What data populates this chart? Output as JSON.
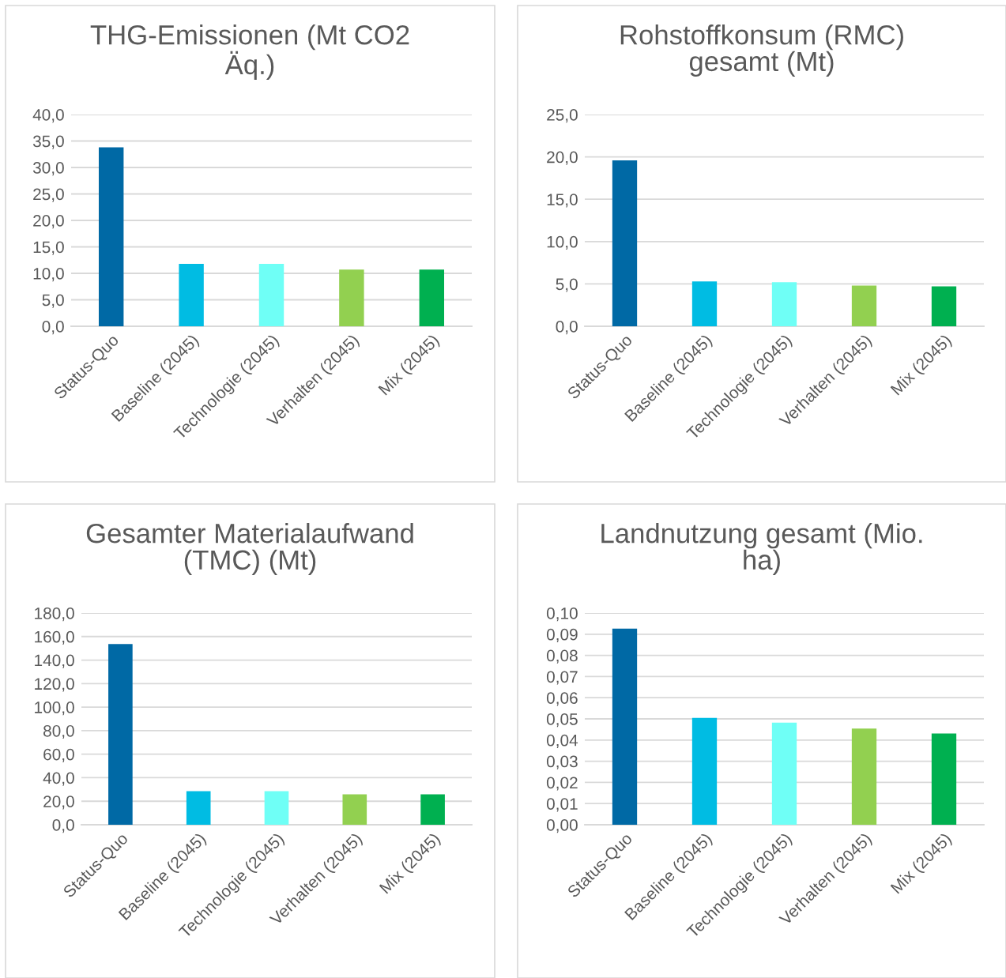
{
  "chart_data": [
    {
      "type": "bar",
      "title": "THG-Emissionen (Mt CO2\nÄq.)",
      "categories": [
        "Status-Quo",
        "Baseline (2045)",
        "Technologie (2045)",
        "Verhalten (2045)",
        "Mix (2045)"
      ],
      "values": [
        33.8,
        11.8,
        11.8,
        10.7,
        10.7
      ],
      "colors": [
        "#0069a5",
        "#00bce3",
        "#6ffff6",
        "#92d050",
        "#00b050"
      ],
      "ylim": [
        0,
        40
      ],
      "yticks": [
        {
          "value": 0,
          "label": "0,0"
        },
        {
          "value": 5,
          "label": "5,0"
        },
        {
          "value": 10,
          "label": "10,0"
        },
        {
          "value": 15,
          "label": "15,0"
        },
        {
          "value": 20,
          "label": "20,0"
        },
        {
          "value": 25,
          "label": "25,0"
        },
        {
          "value": 30,
          "label": "30,0"
        },
        {
          "value": 35,
          "label": "35,0"
        },
        {
          "value": 40,
          "label": "40,0"
        }
      ],
      "grid": "y"
    },
    {
      "type": "bar",
      "title": "Rohstoffkonsum (RMC)\ngesamt (Mt)",
      "categories": [
        "Status-Quo",
        "Baseline (2045)",
        "Technologie (2045)",
        "Verhalten (2045)",
        "Mix (2045)"
      ],
      "values": [
        19.6,
        5.3,
        5.2,
        4.8,
        4.7
      ],
      "colors": [
        "#0069a5",
        "#00bce3",
        "#6ffff6",
        "#92d050",
        "#00b050"
      ],
      "ylim": [
        0,
        25
      ],
      "yticks": [
        {
          "value": 0,
          "label": "0,0"
        },
        {
          "value": 5,
          "label": "5,0"
        },
        {
          "value": 10,
          "label": "10,0"
        },
        {
          "value": 15,
          "label": "15,0"
        },
        {
          "value": 20,
          "label": "20,0"
        },
        {
          "value": 25,
          "label": "25,0"
        }
      ],
      "grid": "y"
    },
    {
      "type": "bar",
      "title": "Gesamter Materialaufwand\n(TMC) (Mt)",
      "categories": [
        "Status-Quo",
        "Baseline (2045)",
        "Technologie (2045)",
        "Verhalten (2045)",
        "Mix (2045)"
      ],
      "values": [
        153.7,
        28.5,
        28.5,
        25.8,
        25.8
      ],
      "colors": [
        "#0069a5",
        "#00bce3",
        "#6ffff6",
        "#92d050",
        "#00b050"
      ],
      "ylim": [
        0,
        180
      ],
      "yticks": [
        {
          "value": 0,
          "label": "0,0"
        },
        {
          "value": 20,
          "label": "20,0"
        },
        {
          "value": 40,
          "label": "40,0"
        },
        {
          "value": 60,
          "label": "60,0"
        },
        {
          "value": 80,
          "label": "80,0"
        },
        {
          "value": 100,
          "label": "100,0"
        },
        {
          "value": 120,
          "label": "120,0"
        },
        {
          "value": 140,
          "label": "140,0"
        },
        {
          "value": 160,
          "label": "160,0"
        },
        {
          "value": 180,
          "label": "180,0"
        }
      ],
      "grid": "y"
    },
    {
      "type": "bar",
      "title": "Landnutzung gesamt (Mio.\nha)",
      "categories": [
        "Status-Quo",
        "Baseline (2045)",
        "Technologie (2045)",
        "Verhalten (2045)",
        "Mix (2045)"
      ],
      "values": [
        0.0926,
        0.0505,
        0.0482,
        0.0454,
        0.0431
      ],
      "colors": [
        "#0069a5",
        "#00bce3",
        "#6ffff6",
        "#92d050",
        "#00b050"
      ],
      "ylim": [
        0,
        0.1
      ],
      "yticks": [
        {
          "value": 0,
          "label": "0,00"
        },
        {
          "value": 0.01,
          "label": "0,01"
        },
        {
          "value": 0.02,
          "label": "0,02"
        },
        {
          "value": 0.03,
          "label": "0,03"
        },
        {
          "value": 0.04,
          "label": "0,04"
        },
        {
          "value": 0.05,
          "label": "0,05"
        },
        {
          "value": 0.06,
          "label": "0,06"
        },
        {
          "value": 0.07,
          "label": "0,07"
        },
        {
          "value": 0.08,
          "label": "0,08"
        },
        {
          "value": 0.09,
          "label": "0,09"
        },
        {
          "value": 0.1,
          "label": "0,10"
        }
      ],
      "grid": "y"
    }
  ]
}
